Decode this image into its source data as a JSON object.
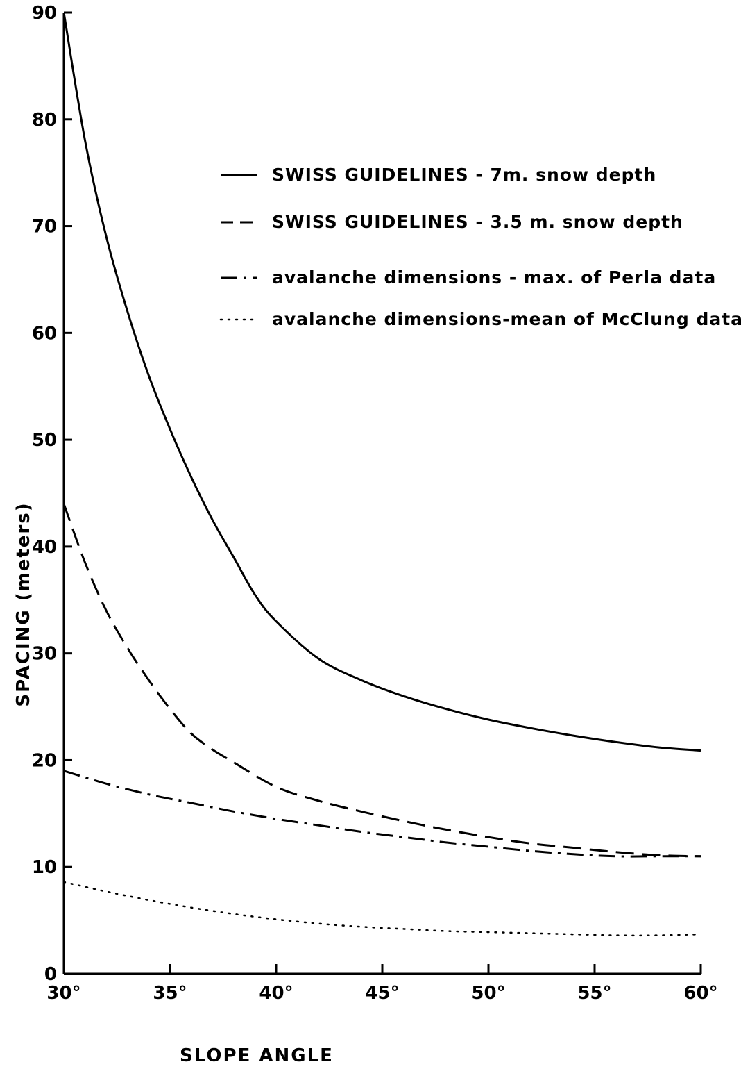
{
  "chart_data": {
    "type": "line",
    "xlabel": "SLOPE ANGLE",
    "ylabel": "SPACING (meters)",
    "xlim": [
      30,
      60
    ],
    "ylim": [
      0,
      90
    ],
    "x_ticks": [
      30,
      35,
      40,
      45,
      50,
      55,
      60
    ],
    "x_tick_labels": [
      "30°",
      "35°",
      "40°",
      "45°",
      "50°",
      "55°",
      "60°"
    ],
    "y_ticks": [
      0,
      10,
      20,
      30,
      40,
      50,
      60,
      70,
      80,
      90
    ],
    "y_tick_labels": [
      "0",
      "10",
      "20",
      "30",
      "40",
      "50",
      "60",
      "70",
      "80",
      "90"
    ],
    "grid": false,
    "legend_position": "top-right",
    "series": [
      {
        "name": "SWISS GUIDELINES - 7m. snow depth",
        "style": "solid",
        "x": [
          30,
          31,
          32,
          33,
          34,
          35,
          36,
          37,
          38,
          39,
          40,
          42,
          44,
          46,
          48,
          50,
          52,
          54,
          56,
          58,
          60
        ],
        "values": [
          90,
          78,
          69,
          62,
          56,
          51,
          46.5,
          42.5,
          39,
          35.5,
          33,
          29.5,
          27.5,
          26,
          24.8,
          23.8,
          23,
          22.3,
          21.7,
          21.2,
          20.9
        ]
      },
      {
        "name": "SWISS GUIDELINES - 3.5 m. snow depth",
        "style": "dashed",
        "x": [
          30,
          31,
          32,
          33,
          34,
          35,
          36,
          37,
          38,
          40,
          42,
          44,
          46,
          48,
          50,
          52,
          54,
          56,
          58,
          60
        ],
        "values": [
          44,
          38.5,
          34,
          30.5,
          27.5,
          24.8,
          22.5,
          21,
          19.8,
          17.5,
          16.2,
          15.2,
          14.3,
          13.5,
          12.8,
          12.2,
          11.8,
          11.4,
          11.1,
          11
        ]
      },
      {
        "name": "avalanche dimensions - max. of Perla data",
        "style": "dashdot",
        "x": [
          30,
          32,
          34,
          36,
          38,
          40,
          42,
          44,
          46,
          48,
          50,
          52,
          54,
          56,
          58,
          60
        ],
        "values": [
          19,
          17.8,
          16.8,
          16,
          15.2,
          14.5,
          13.9,
          13.3,
          12.8,
          12.3,
          11.9,
          11.5,
          11.2,
          11,
          11,
          11
        ]
      },
      {
        "name": "avalanche dimensions-mean of McClung data",
        "style": "dotted",
        "x": [
          30,
          32,
          34,
          36,
          38,
          40,
          42,
          44,
          46,
          48,
          50,
          52,
          54,
          56,
          58,
          60
        ],
        "values": [
          8.6,
          7.7,
          6.9,
          6.2,
          5.6,
          5.1,
          4.7,
          4.4,
          4.2,
          4.0,
          3.9,
          3.8,
          3.7,
          3.6,
          3.6,
          3.7
        ]
      }
    ]
  },
  "legend": {
    "items": [
      {
        "text": "SWISS GUIDELINES - 7m. snow depth",
        "style": "solid"
      },
      {
        "text": "SWISS GUIDELINES - 3.5 m. snow depth",
        "style": "dashed"
      },
      {
        "text": "avalanche dimensions - max. of Perla data",
        "style": "dashdot"
      },
      {
        "text": "avalanche dimensions-mean of McClung data",
        "style": "dotted"
      }
    ]
  },
  "colors": {
    "ink": "#000000",
    "background": "#ffffff"
  }
}
